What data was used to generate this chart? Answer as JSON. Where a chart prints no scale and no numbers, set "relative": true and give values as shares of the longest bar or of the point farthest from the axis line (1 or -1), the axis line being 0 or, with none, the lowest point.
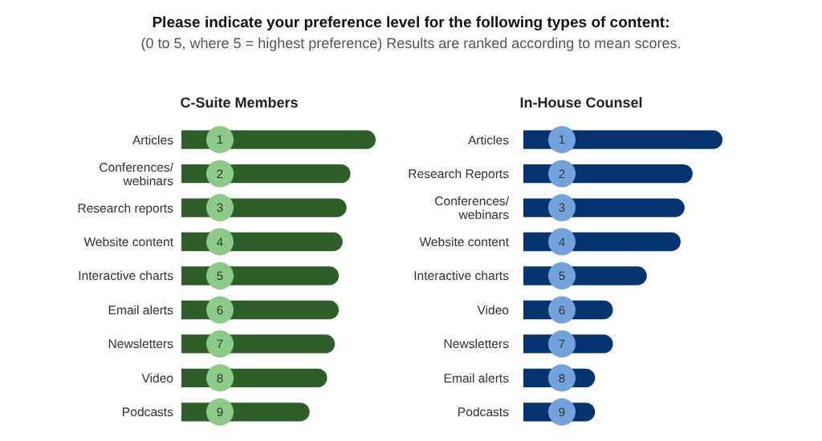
{
  "chart_data": [
    {
      "type": "bar",
      "orientation": "horizontal",
      "relative": true,
      "title": "C-Suite Members",
      "annotations": [
        "Please indicate your preference level for the following types of content:",
        "(0 to 5, where 5 = highest preference) Results are ranked according to mean scores.",
        {
          "text": "1",
          "y": "Articles"
        },
        {
          "text": "2",
          "y": "Conferences/ webinars"
        },
        {
          "text": "3",
          "y": "Research reports"
        },
        {
          "text": "4",
          "y": "Website content"
        },
        {
          "text": "5",
          "y": "Interactive charts"
        },
        {
          "text": "6",
          "y": "Email alerts"
        },
        {
          "text": "7",
          "y": "Newsletters"
        },
        {
          "text": "8",
          "y": "Video"
        },
        {
          "text": "9",
          "y": "Podcasts"
        }
      ],
      "categories": [
        "Articles",
        "Conferences/ webinars",
        "Research reports",
        "Website content",
        "Interactive charts",
        "Email alerts",
        "Newsletters",
        "Video",
        "Podcasts"
      ],
      "series": [
        {
          "color": "#2e5f2a",
          "values": [
            1,
            0.87,
            0.85,
            0.83,
            0.81,
            0.81,
            0.79,
            0.75,
            0.66
          ]
        }
      ]
    },
    {
      "type": "bar",
      "orientation": "horizontal",
      "relative": true,
      "title": "In-House Counsel",
      "annotations": [
        {
          "text": "1",
          "y": "Articles"
        },
        {
          "text": "2",
          "y": "Research Reports"
        },
        {
          "text": "3",
          "y": "Conferences/ webinars"
        },
        {
          "text": "4",
          "y": "Website content"
        },
        {
          "text": "5",
          "y": "Interactive charts"
        },
        {
          "text": "6",
          "y": "Video"
        },
        {
          "text": "7",
          "y": "Newsletters"
        },
        {
          "text": "8",
          "y": "Email alerts"
        },
        {
          "text": "9",
          "y": "Podcasts"
        }
      ],
      "categories": [
        "Articles",
        "Research Reports",
        "Conferences/ webinars",
        "Website content",
        "Interactive charts",
        "Video",
        "Newsletters",
        "Email alerts",
        "Podcasts"
      ],
      "series": [
        {
          "color": "#06346e",
          "values": [
            1,
            0.85,
            0.81,
            0.79,
            0.62,
            0.45,
            0.45,
            0.36,
            0.36
          ]
        }
      ]
    }
  ]
}
